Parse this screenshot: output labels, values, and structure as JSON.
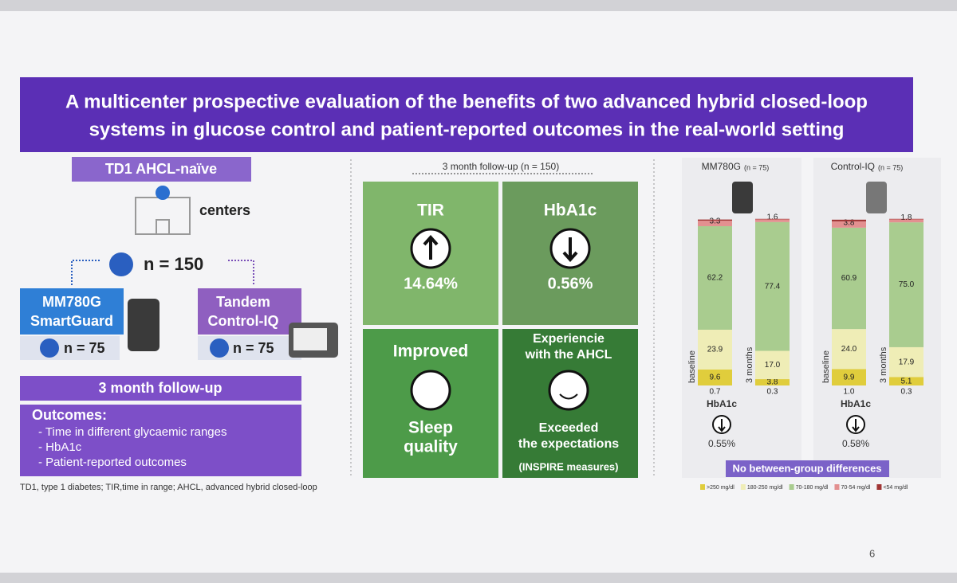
{
  "title": [
    "A multicenter prospective evaluation of the benefits of two advanced hybrid closed-loop",
    "systems in glucose control and patient-reported outcomes in the real-world setting"
  ],
  "left": {
    "population": "TD1 AHCL-naïve",
    "centers": "centers",
    "total": "n = 150",
    "arms": [
      {
        "lines": [
          "MM780G",
          "SmartGuard"
        ],
        "n": "n = 75"
      },
      {
        "lines": [
          "Tandem",
          "Control-IQ"
        ],
        "n": "n = 75"
      }
    ],
    "followup": "3 month follow-up",
    "outcomes": {
      "heading": "Outcomes:",
      "items": [
        "- Time in different glycaemic ranges",
        "- HbA1c",
        "- Patient-reported outcomes"
      ]
    },
    "footnote": "TD1, type 1 diabetes; TIR,time in range; AHCL, advanced hybrid closed-loop"
  },
  "middle": {
    "header": "3 month follow-up (n = 150)",
    "tiles": [
      {
        "label": "TIR",
        "value": "14.64%"
      },
      {
        "label": "HbA1c",
        "value": "0.56%"
      },
      {
        "label": "Improved",
        "sub": [
          "Sleep",
          "quality"
        ]
      },
      {
        "label": [
          "Experiencie",
          "with the AHCL"
        ],
        "sub": [
          "Exceeded",
          "the expectations"
        ],
        "note": "(INSPIRE measures)"
      }
    ]
  },
  "right": {
    "groups": [
      {
        "name": "MM780G",
        "n": "(n = 75)",
        "stacks": [
          {
            "label": "baseline",
            "values": [
              9.6,
              23.9,
              62.2,
              3.3,
              0.7
            ],
            "value_labels": [
              "9.6",
              "23.9",
              "62.2",
              "3.3",
              "0.7"
            ]
          },
          {
            "label": "3 months",
            "values": [
              3.8,
              17.0,
              77.4,
              1.6,
              0.3
            ],
            "value_labels": [
              "3.8",
              "17.0",
              "77.4",
              "1.6",
              "0.3"
            ]
          }
        ],
        "hba1c_label": "HbA1c",
        "hba1c": "0.55%"
      },
      {
        "name": "Control-IQ",
        "n": "(n = 75)",
        "stacks": [
          {
            "label": "baseline",
            "values": [
              9.9,
              24.0,
              60.9,
              3.8,
              1.0
            ],
            "value_labels": [
              "9.9",
              "24.0",
              "60.9",
              "3.8",
              "1.0"
            ]
          },
          {
            "label": "3 months",
            "values": [
              5.1,
              17.9,
              75.0,
              1.8,
              0.3
            ],
            "value_labels": [
              "5.1",
              "17.9",
              "75.0",
              "1.8",
              "0.3"
            ]
          }
        ],
        "hba1c_label": "HbA1c",
        "hba1c": "0.58%"
      }
    ],
    "note": "No between-group differences",
    "legend": [
      {
        "name": ">250 mg/dl",
        "color": "#e0cd3c"
      },
      {
        "name": "180-250 mg/dl",
        "color": "#efedb6"
      },
      {
        "name": "70-180 mg/dl",
        "color": "#a9cc8f"
      },
      {
        "name": "70-54 mg/dl",
        "color": "#e39090"
      },
      {
        "name": "<54 mg/dl",
        "color": "#a03434"
      }
    ]
  },
  "page_number": "6"
}
